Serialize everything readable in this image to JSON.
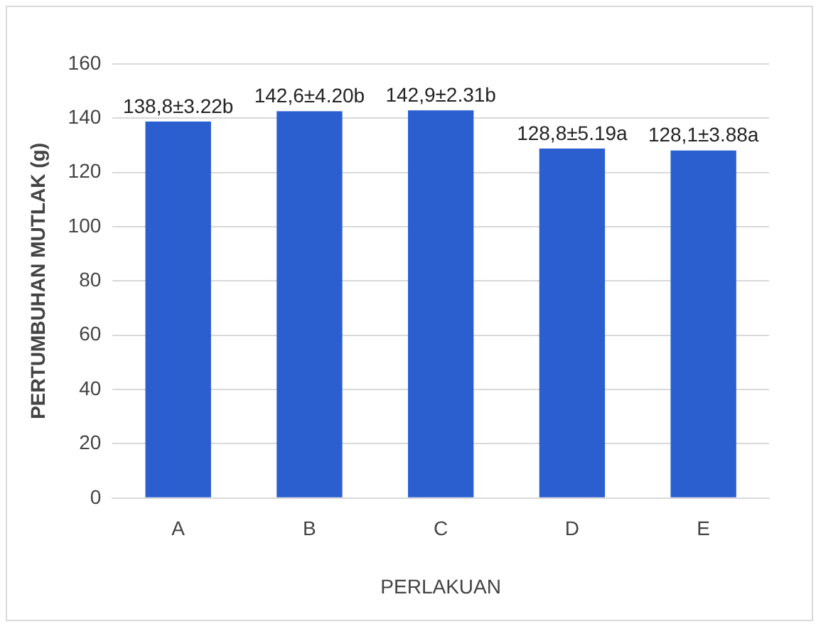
{
  "chart_data": {
    "type": "bar",
    "xlabel": "PERLAKUAN",
    "ylabel": "PERTUMBUHAN MUTLAK (g)",
    "categories": [
      "A",
      "B",
      "C",
      "D",
      "E"
    ],
    "values": [
      138.8,
      142.6,
      142.9,
      128.8,
      128.1
    ],
    "value_labels": [
      "138,8±3.22b",
      "142,6±4.20b",
      "142,9±2.31b",
      "128,8±5.19a",
      "128,1±3.88a"
    ],
    "color": "#2b5fd0",
    "ylim": [
      0,
      160
    ],
    "yticks": [
      0,
      20,
      40,
      60,
      80,
      100,
      120,
      140,
      160
    ],
    "grid": "y",
    "legend": false
  }
}
